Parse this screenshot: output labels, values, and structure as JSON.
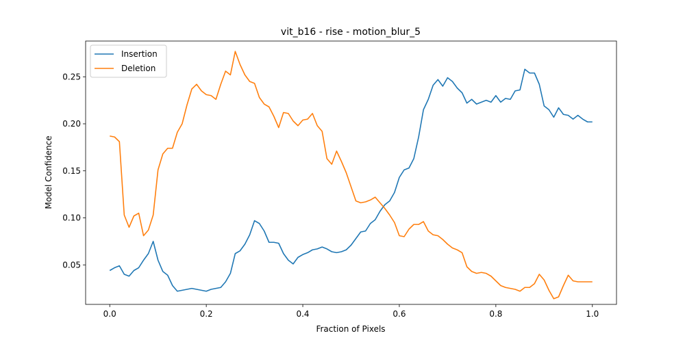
{
  "chart_data": {
    "type": "line",
    "title": "vit_b16 - rise - motion_blur_5",
    "xlabel": "Fraction of Pixels",
    "ylabel": "Model Confidence",
    "xlim": [
      -0.05,
      1.05
    ],
    "ylim": [
      0.008,
      0.288
    ],
    "xticks": [
      0.0,
      0.2,
      0.4,
      0.6,
      0.8,
      1.0
    ],
    "xtick_labels": [
      "0.0",
      "0.2",
      "0.4",
      "0.6",
      "0.8",
      "1.0"
    ],
    "yticks": [
      0.05,
      0.1,
      0.15,
      0.2,
      0.25
    ],
    "ytick_labels": [
      "0.05",
      "0.10",
      "0.15",
      "0.20",
      "0.25"
    ],
    "grid": false,
    "legend_position": "upper-left",
    "x": [
      0.0,
      0.01,
      0.02,
      0.03,
      0.04,
      0.05,
      0.06,
      0.07,
      0.08,
      0.09,
      0.1,
      0.11,
      0.12,
      0.13,
      0.14,
      0.15,
      0.16,
      0.17,
      0.18,
      0.19,
      0.2,
      0.21,
      0.22,
      0.23,
      0.24,
      0.25,
      0.26,
      0.27,
      0.28,
      0.29,
      0.3,
      0.31,
      0.32,
      0.33,
      0.34,
      0.35,
      0.36,
      0.37,
      0.38,
      0.39,
      0.4,
      0.41,
      0.42,
      0.43,
      0.44,
      0.45,
      0.46,
      0.47,
      0.48,
      0.49,
      0.5,
      0.51,
      0.52,
      0.53,
      0.54,
      0.55,
      0.56,
      0.57,
      0.58,
      0.59,
      0.6,
      0.61,
      0.62,
      0.63,
      0.64,
      0.65,
      0.66,
      0.67,
      0.68,
      0.69,
      0.7,
      0.71,
      0.72,
      0.73,
      0.74,
      0.75,
      0.76,
      0.77,
      0.78,
      0.79,
      0.8,
      0.81,
      0.82,
      0.83,
      0.84,
      0.85,
      0.86,
      0.87,
      0.88,
      0.89,
      0.9,
      0.91,
      0.92,
      0.93,
      0.94,
      0.95,
      0.96,
      0.97,
      0.98,
      0.99,
      1.0
    ],
    "series": [
      {
        "name": "Insertion",
        "color": "#1f77b4",
        "values": [
          0.044,
          0.047,
          0.049,
          0.04,
          0.038,
          0.044,
          0.047,
          0.055,
          0.062,
          0.075,
          0.055,
          0.043,
          0.039,
          0.028,
          0.022,
          0.023,
          0.024,
          0.025,
          0.024,
          0.023,
          0.022,
          0.024,
          0.025,
          0.026,
          0.032,
          0.041,
          0.062,
          0.065,
          0.072,
          0.082,
          0.097,
          0.094,
          0.086,
          0.074,
          0.074,
          0.073,
          0.062,
          0.055,
          0.051,
          0.058,
          0.061,
          0.063,
          0.066,
          0.067,
          0.069,
          0.067,
          0.064,
          0.063,
          0.064,
          0.066,
          0.071,
          0.078,
          0.085,
          0.086,
          0.094,
          0.098,
          0.107,
          0.114,
          0.118,
          0.127,
          0.143,
          0.151,
          0.153,
          0.163,
          0.186,
          0.215,
          0.226,
          0.241,
          0.247,
          0.24,
          0.249,
          0.245,
          0.238,
          0.233,
          0.222,
          0.226,
          0.221,
          0.223,
          0.225,
          0.223,
          0.23,
          0.223,
          0.227,
          0.226,
          0.235,
          0.236,
          0.258,
          0.254,
          0.254,
          0.242,
          0.219,
          0.215,
          0.207,
          0.217,
          0.21,
          0.209,
          0.205,
          0.209,
          0.205,
          0.202,
          0.202
        ]
      },
      {
        "name": "Deletion",
        "color": "#ff7f0e",
        "values": [
          0.187,
          0.186,
          0.181,
          0.103,
          0.09,
          0.102,
          0.105,
          0.081,
          0.087,
          0.103,
          0.151,
          0.168,
          0.174,
          0.174,
          0.191,
          0.2,
          0.22,
          0.237,
          0.242,
          0.235,
          0.231,
          0.23,
          0.226,
          0.242,
          0.256,
          0.252,
          0.277,
          0.263,
          0.252,
          0.245,
          0.243,
          0.228,
          0.221,
          0.218,
          0.208,
          0.196,
          0.212,
          0.211,
          0.203,
          0.198,
          0.204,
          0.205,
          0.211,
          0.198,
          0.192,
          0.163,
          0.157,
          0.171,
          0.16,
          0.148,
          0.133,
          0.118,
          0.116,
          0.117,
          0.119,
          0.122,
          0.116,
          0.11,
          0.103,
          0.095,
          0.081,
          0.08,
          0.088,
          0.093,
          0.093,
          0.096,
          0.086,
          0.082,
          0.081,
          0.077,
          0.072,
          0.068,
          0.066,
          0.063,
          0.048,
          0.043,
          0.041,
          0.042,
          0.041,
          0.038,
          0.033,
          0.028,
          0.026,
          0.025,
          0.024,
          0.022,
          0.026,
          0.026,
          0.03,
          0.04,
          0.034,
          0.023,
          0.014,
          0.016,
          0.028,
          0.039,
          0.033,
          0.032,
          0.032,
          0.032,
          0.032
        ]
      }
    ]
  }
}
